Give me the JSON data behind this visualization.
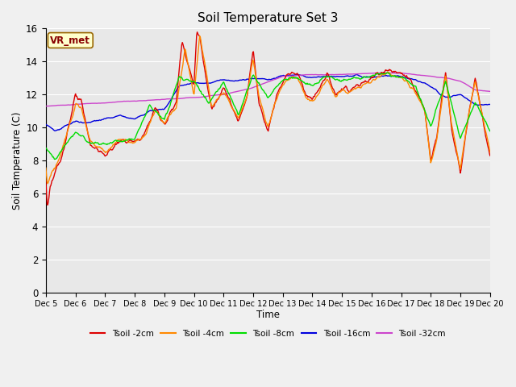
{
  "title": "Soil Temperature Set 3",
  "xlabel": "Time",
  "ylabel": "Soil Temperature (C)",
  "ylim": [
    0,
    16
  ],
  "yticks": [
    0,
    2,
    4,
    6,
    8,
    10,
    12,
    14,
    16
  ],
  "plot_bg_color": "#e8e8e8",
  "fig_bg_color": "#f0f0f0",
  "annotation_text": "VR_met",
  "annotation_box_color": "#ffffcc",
  "annotation_border_color": "#996600",
  "colors": {
    "Tsoil -2cm": "#dd0000",
    "Tsoil -4cm": "#ff8800",
    "Tsoil -8cm": "#00dd00",
    "Tsoil -16cm": "#0000dd",
    "Tsoil -32cm": "#cc44cc"
  },
  "xtick_labels": [
    "Dec 5",
    "Dec 6",
    "Dec 7",
    "Dec 8",
    "Dec 9",
    "Dec 10",
    "Dec 11",
    "Dec 12",
    "Dec 13",
    "Dec 14",
    "Dec 15",
    "Dec 16",
    "Dec 17",
    "Dec 18",
    "Dec 19",
    "Dec 20"
  ],
  "grid_color": "#ffffff",
  "line_width": 1.0
}
